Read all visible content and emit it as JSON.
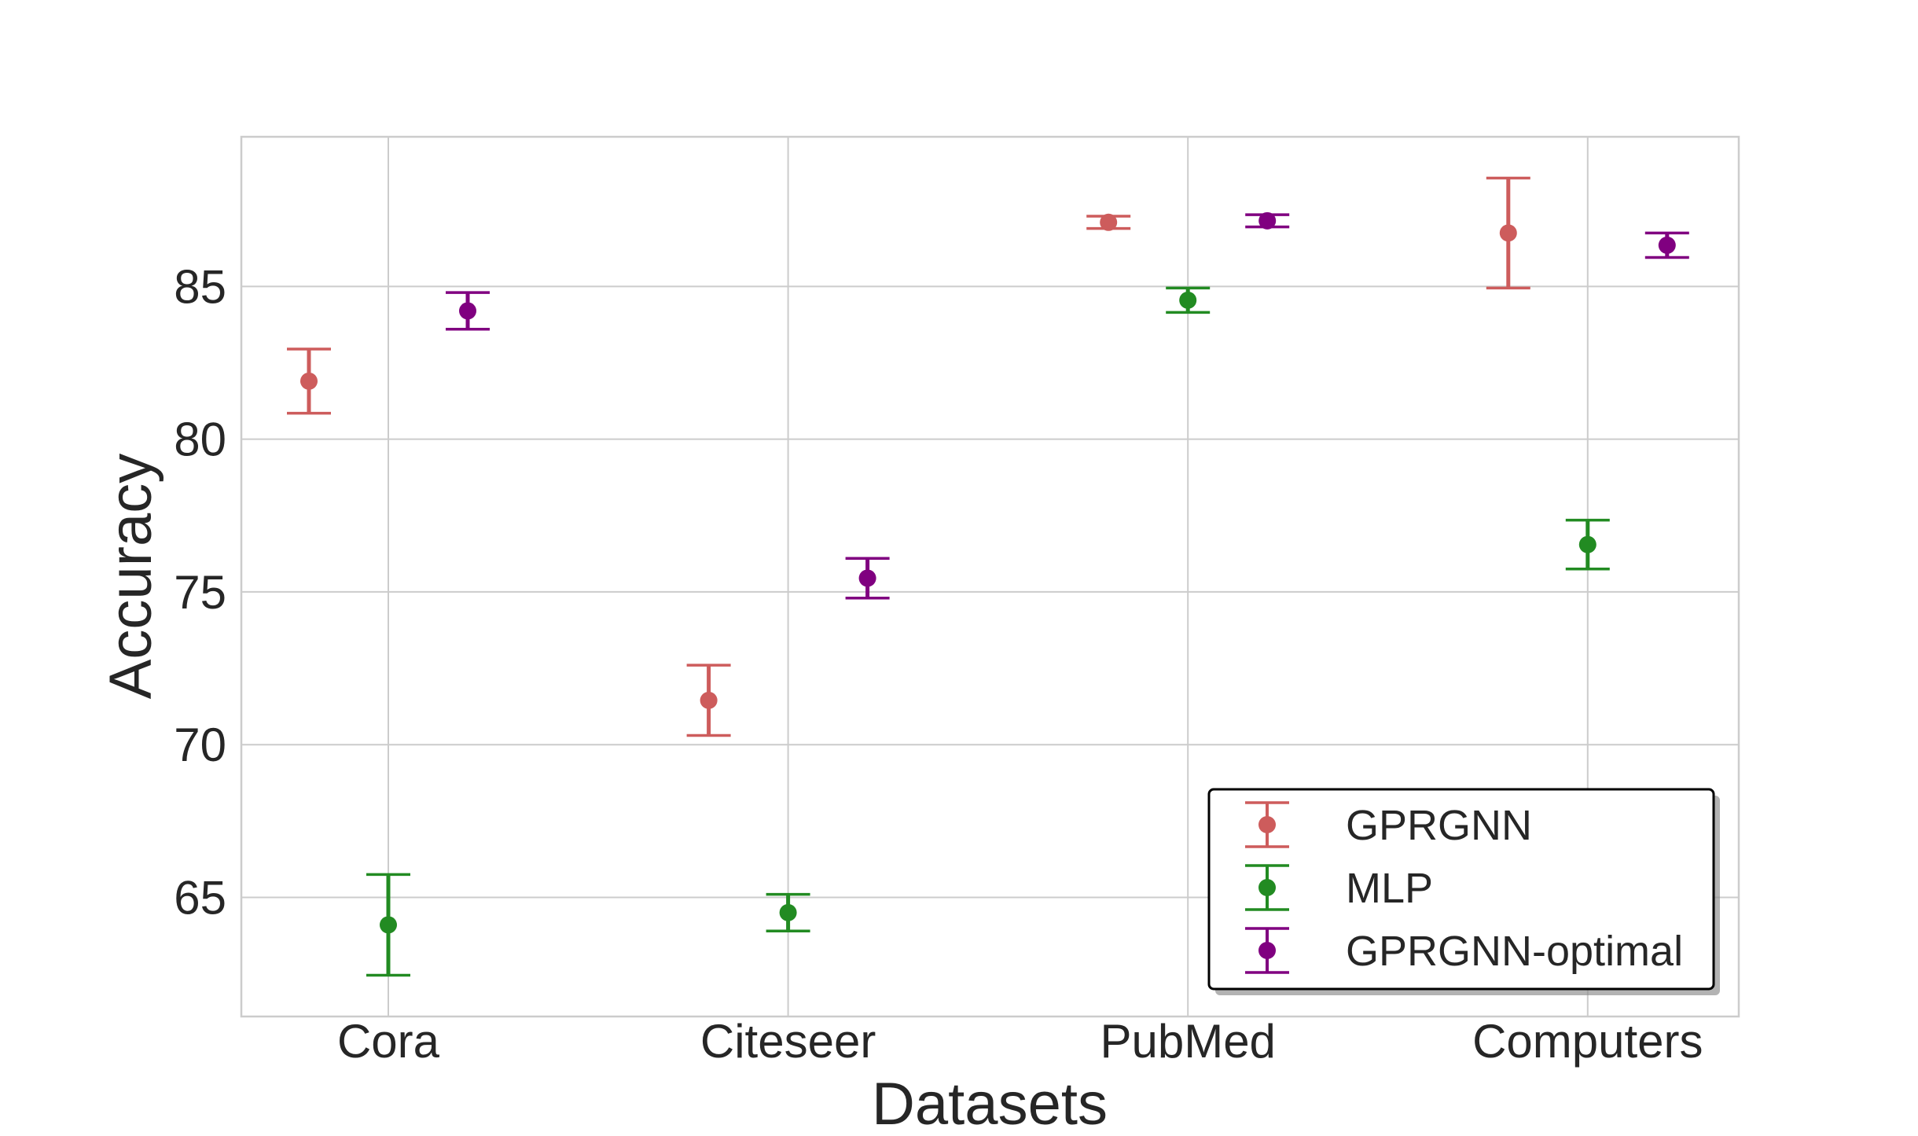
{
  "chart_data": {
    "type": "scatter",
    "title": "",
    "xlabel": "Datasets",
    "ylabel": "Accuracy",
    "categories": [
      "Cora",
      "Citeseer",
      "PubMed",
      "Computers"
    ],
    "yticks": [
      65,
      70,
      75,
      80,
      85
    ],
    "ylim": [
      61.1,
      89.9
    ],
    "grid": true,
    "legend_position": "bottom-right",
    "series": [
      {
        "name": "GPRGNN",
        "color": "#cd5c5c",
        "offset": -1,
        "values": [
          81.9,
          71.45,
          87.1,
          86.75
        ],
        "errors": [
          1.05,
          1.15,
          0.2,
          1.8
        ]
      },
      {
        "name": "MLP",
        "color": "#228b22",
        "offset": 0,
        "values": [
          64.1,
          64.5,
          84.55,
          76.55
        ],
        "errors": [
          1.65,
          0.6,
          0.4,
          0.8
        ]
      },
      {
        "name": "GPRGNN-optimal",
        "color": "#800080",
        "offset": 1,
        "values": [
          84.2,
          75.45,
          87.15,
          86.35
        ],
        "errors": [
          0.6,
          0.65,
          0.2,
          0.4
        ]
      }
    ]
  }
}
